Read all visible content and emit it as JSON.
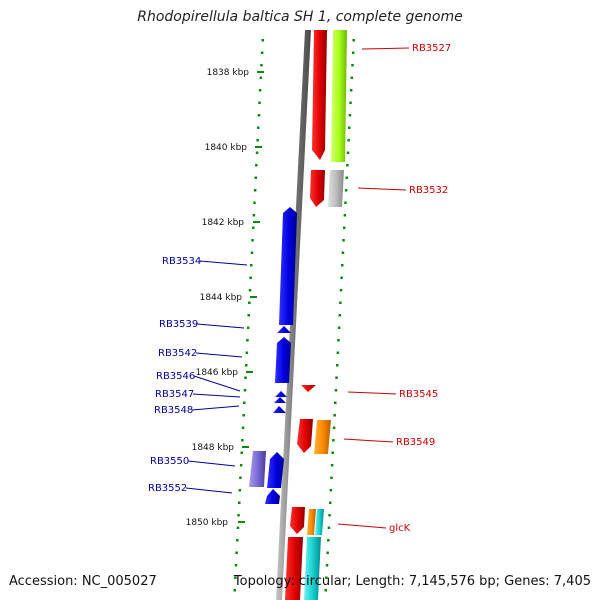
{
  "title": "Rhodopirellula baltica SH 1, complete genome",
  "accession": "Accession: NC_005027",
  "topology": "Topology: circular; Length: 7,145,576 bp; Genes: 7,405",
  "scale_ticks": [
    {
      "label": "1838 kbp"
    },
    {
      "label": "1840 kbp"
    },
    {
      "label": "1842 kbp"
    },
    {
      "label": "1844 kbp"
    },
    {
      "label": "1846 kbp"
    },
    {
      "label": "1848 kbp"
    },
    {
      "label": "1850 kbp"
    }
  ],
  "gene_labels_left": [
    {
      "name": "RB3534"
    },
    {
      "name": "RB3539"
    },
    {
      "name": "RB3542"
    },
    {
      "name": "RB3546"
    },
    {
      "name": "RB3547"
    },
    {
      "name": "RB3548"
    },
    {
      "name": "RB3550"
    },
    {
      "name": "RB3552"
    }
  ],
  "gene_labels_right": [
    {
      "name": "RB3527"
    },
    {
      "name": "RB3532"
    },
    {
      "name": "RB3545"
    },
    {
      "name": "RB3549"
    },
    {
      "name": "glcK"
    }
  ],
  "colors": {
    "forward_strand": "#e60000",
    "reverse_strand": "#0000e6",
    "scale": "#0a8a0a",
    "backbone": "#8c8c8c",
    "lime": "#a8ff1a",
    "gray_feature": "#bdbdbd",
    "orange": "#ff8c00",
    "cyan": "#1ad1d1",
    "violet": "#7a6cd6",
    "label_red": "#cc0000",
    "label_blue": "#000099"
  }
}
